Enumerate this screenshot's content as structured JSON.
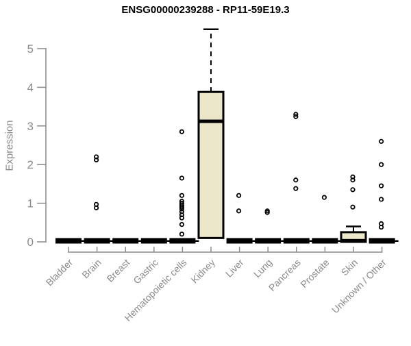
{
  "chart_data": {
    "type": "boxplot",
    "title": "ENSG00000239288 - RP11-59E19.3",
    "ylabel": "Expression",
    "xlabel": "",
    "ylim": [
      0,
      5.6
    ],
    "yticks": [
      0,
      1,
      2,
      3,
      4,
      5
    ],
    "grid": false,
    "legend": "none",
    "box_fill_color": "#ECE7CB",
    "box_stroke_color": "#000000",
    "axis_color": "#8a8a8a",
    "title_color": "#000000",
    "categories": [
      "Bladder",
      "Brain",
      "Breast",
      "Gastric",
      "Hematopoietic cells",
      "Kidney",
      "Liver",
      "Lung",
      "Pancreas",
      "Prostate",
      "Skin",
      "Unknown / Other"
    ],
    "series": [
      {
        "label": "Bladder",
        "q1": 0,
        "median": 0,
        "q3": 0,
        "whisker_low": 0,
        "whisker_high": 0,
        "outliers": []
      },
      {
        "label": "Brain",
        "q1": 0,
        "median": 0,
        "q3": 0,
        "whisker_low": 0,
        "whisker_high": 0,
        "outliers": [
          2.2,
          2.12,
          0.97,
          0.88
        ]
      },
      {
        "label": "Breast",
        "q1": 0,
        "median": 0,
        "q3": 0,
        "whisker_low": 0,
        "whisker_high": 0,
        "outliers": []
      },
      {
        "label": "Gastric",
        "q1": 0,
        "median": 0,
        "q3": 0,
        "whisker_low": 0,
        "whisker_high": 0,
        "outliers": []
      },
      {
        "label": "Hematopoietic cells",
        "q1": 0,
        "median": 0,
        "q3": 0,
        "whisker_low": 0,
        "whisker_high": 0,
        "outliers": [
          2.85,
          1.65,
          1.2,
          1.05,
          1.0,
          0.95,
          0.9,
          0.85,
          0.78,
          0.7,
          0.62,
          0.45,
          0.2
        ]
      },
      {
        "label": "Kidney",
        "q1": 0.1,
        "median": 3.12,
        "q3": 3.88,
        "whisker_low": 0.1,
        "whisker_high": 5.5,
        "outliers": []
      },
      {
        "label": "Liver",
        "q1": 0,
        "median": 0,
        "q3": 0,
        "whisker_low": 0,
        "whisker_high": 0,
        "outliers": [
          1.2,
          0.8
        ]
      },
      {
        "label": "Lung",
        "q1": 0,
        "median": 0,
        "q3": 0,
        "whisker_low": 0,
        "whisker_high": 0,
        "outliers": [
          0.8,
          0.76
        ]
      },
      {
        "label": "Pancreas",
        "q1": 0,
        "median": 0,
        "q3": 0,
        "whisker_low": 0,
        "whisker_high": 0,
        "outliers": [
          3.3,
          3.24,
          1.6,
          1.38
        ]
      },
      {
        "label": "Prostate",
        "q1": 0,
        "median": 0,
        "q3": 0,
        "whisker_low": 0,
        "whisker_high": 0,
        "outliers": [
          1.15
        ]
      },
      {
        "label": "Skin",
        "q1": 0,
        "median": 0.03,
        "q3": 0.25,
        "whisker_low": 0,
        "whisker_high": 0.4,
        "outliers": [
          1.68,
          1.6,
          1.35,
          0.9
        ]
      },
      {
        "label": "Unknown / Other",
        "q1": 0,
        "median": 0,
        "q3": 0,
        "whisker_low": 0,
        "whisker_high": 0,
        "outliers": [
          2.6,
          2.0,
          1.45,
          1.1,
          0.47,
          0.38
        ]
      }
    ]
  }
}
